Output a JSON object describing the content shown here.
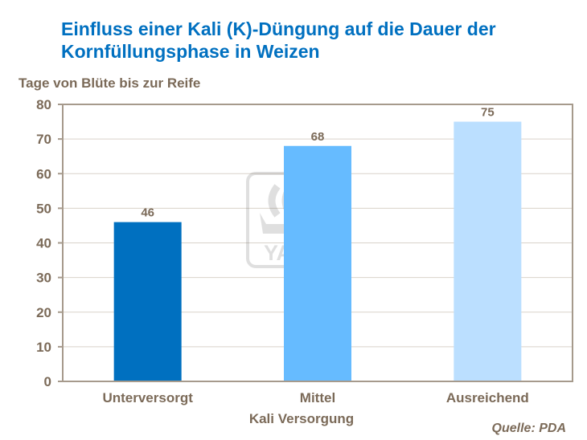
{
  "title_line1": "Einfluss einer Kali (K)-Düngung auf die Dauer der",
  "title_line2": "Kornfüllungsphase in Weizen",
  "source": "Quelle:  PDA",
  "watermark": "YARA",
  "chart_data": {
    "type": "bar",
    "title": "Einfluss einer Kali (K)-Düngung auf die Dauer der Kornfüllungsphase in Weizen",
    "xlabel": "Kali Versorgung",
    "ylabel": "Tage von Blüte bis zur Reife",
    "categories": [
      "Unterversorgt",
      "Mittel",
      "Ausreichend"
    ],
    "values": [
      46,
      68,
      75
    ],
    "data_labels": [
      "46",
      "68",
      "75"
    ],
    "colors": [
      "#0070c0",
      "#66bbff",
      "#bbdfff"
    ],
    "ylim": [
      0,
      80
    ],
    "yticks": [
      "0",
      "10",
      "20",
      "30",
      "40",
      "50",
      "60",
      "70",
      "80"
    ],
    "grid": true,
    "legend": "none"
  }
}
